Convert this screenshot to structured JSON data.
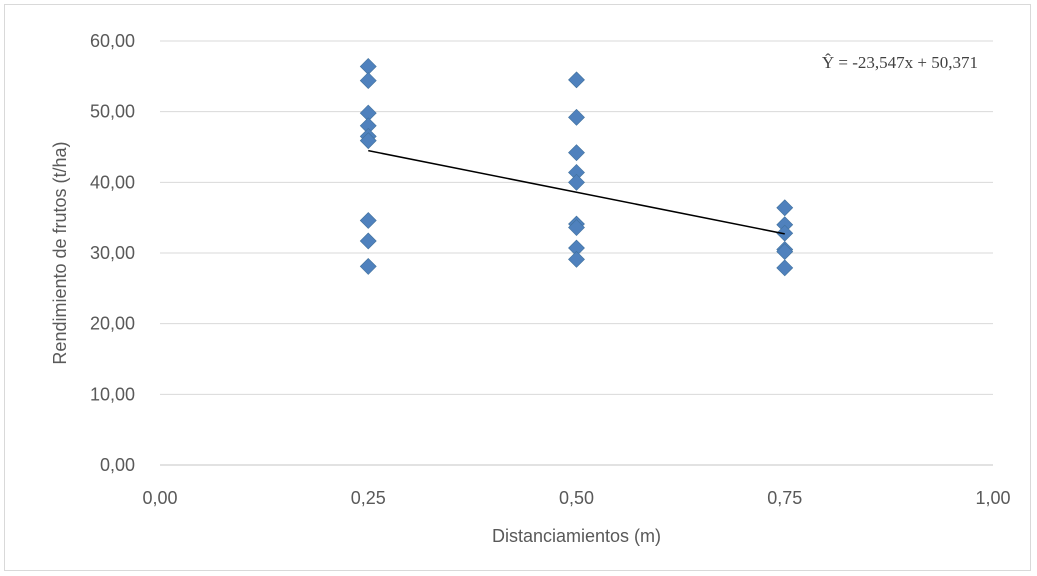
{
  "chart_data": {
    "type": "scatter",
    "title": "",
    "xlabel": "Distanciamientos (m)",
    "ylabel": "Rendimiento de frutos (t/ha)",
    "xlim": [
      0,
      1
    ],
    "ylim": [
      0,
      60
    ],
    "x_ticks": [
      "0,00",
      "0,25",
      "0,50",
      "0,75",
      "1,00"
    ],
    "y_ticks": [
      "0,00",
      "10,00",
      "20,00",
      "30,00",
      "40,00",
      "50,00",
      "60,00"
    ],
    "grid": "horizontal",
    "series": [
      {
        "marker": "diamond",
        "color": "#4f81bd",
        "points": [
          {
            "x": 0.25,
            "y": 56.4
          },
          {
            "x": 0.25,
            "y": 54.4
          },
          {
            "x": 0.25,
            "y": 49.8
          },
          {
            "x": 0.25,
            "y": 48.0
          },
          {
            "x": 0.25,
            "y": 46.5
          },
          {
            "x": 0.25,
            "y": 45.9
          },
          {
            "x": 0.25,
            "y": 34.6
          },
          {
            "x": 0.25,
            "y": 31.7
          },
          {
            "x": 0.25,
            "y": 28.1
          },
          {
            "x": 0.5,
            "y": 54.5
          },
          {
            "x": 0.5,
            "y": 49.2
          },
          {
            "x": 0.5,
            "y": 44.2
          },
          {
            "x": 0.5,
            "y": 41.4
          },
          {
            "x": 0.5,
            "y": 40.0
          },
          {
            "x": 0.5,
            "y": 34.1
          },
          {
            "x": 0.5,
            "y": 33.6
          },
          {
            "x": 0.5,
            "y": 30.7
          },
          {
            "x": 0.5,
            "y": 29.1
          },
          {
            "x": 0.75,
            "y": 36.4
          },
          {
            "x": 0.75,
            "y": 34.0
          },
          {
            "x": 0.75,
            "y": 32.8
          },
          {
            "x": 0.75,
            "y": 30.5
          },
          {
            "x": 0.75,
            "y": 30.2
          },
          {
            "x": 0.75,
            "y": 27.9
          }
        ]
      }
    ],
    "trendline": {
      "type": "linear",
      "slope": -23.547,
      "intercept": 50.371,
      "x_range": [
        0.25,
        0.75
      ],
      "color": "#000000",
      "equation": "Ŷ = -23,547x + 50,371"
    }
  }
}
